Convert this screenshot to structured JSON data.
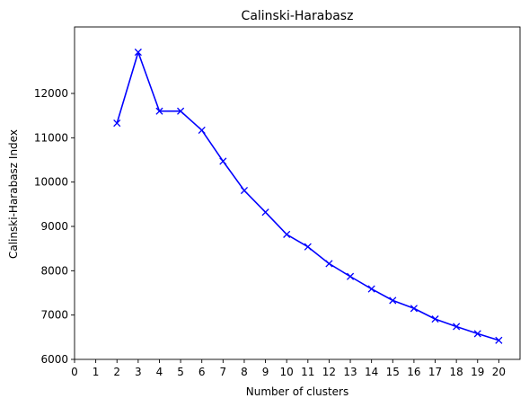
{
  "chart_data": {
    "type": "line",
    "title": "Calinski-Harabasz",
    "xlabel": "Number of clusters",
    "ylabel": "Calinski-Harabasz Index",
    "xlim": [
      0,
      21
    ],
    "ylim": [
      6000,
      13500
    ],
    "x_ticks": [
      0,
      1,
      2,
      3,
      4,
      5,
      6,
      7,
      8,
      9,
      10,
      11,
      12,
      13,
      14,
      15,
      16,
      17,
      18,
      19,
      20
    ],
    "y_ticks": [
      6000,
      7000,
      8000,
      9000,
      10000,
      11000,
      12000
    ],
    "grid": false,
    "line_color": "#0000ff",
    "marker": "x",
    "series": [
      {
        "x": [
          2,
          3,
          4,
          5,
          6,
          7,
          8,
          9,
          10,
          11,
          12,
          13,
          14,
          15,
          16,
          17,
          18,
          19,
          20
        ],
        "values": [
          11330,
          12930,
          11600,
          11600,
          11170,
          10470,
          9810,
          9320,
          8820,
          8540,
          8160,
          7870,
          7590,
          7330,
          7150,
          6910,
          6740,
          6580,
          6430
        ]
      }
    ]
  }
}
